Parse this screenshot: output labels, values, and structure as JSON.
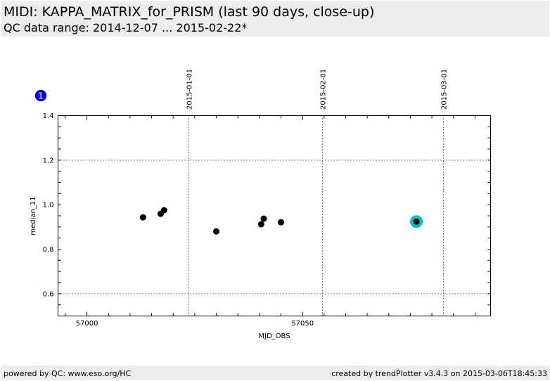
{
  "header": {
    "title": "MIDI: KAPPA_MATRIX_for_PRISM (last 90 days, close-up)",
    "subtitle": "QC data range: 2014-12-07 ... 2015-02-22*"
  },
  "footer": {
    "left": "powered by QC: www.eso.org/HC",
    "right": "created by trendPlotter v3.4.3 on 2015-03-06T18:45:33"
  },
  "badge": "1",
  "chart_data": {
    "type": "scatter",
    "xlabel": "MJD_OBS",
    "ylabel": "median_11",
    "xlim": [
      56993.3,
      57093.6
    ],
    "ylim": [
      0.5,
      1.4
    ],
    "xticks": [
      57000,
      57050
    ],
    "xtick_labels": [
      "57000",
      "57050"
    ],
    "yticks": [
      0.6,
      0.8,
      1.0,
      1.2,
      1.4
    ],
    "ytick_labels": [
      "0.6",
      "0.8",
      "1.0",
      "1.2",
      "1.4"
    ],
    "ygrid": [
      0.6,
      1.2
    ],
    "date_lines": [
      {
        "label": "2015-01-01",
        "mjd": 57023.6
      },
      {
        "label": "2015-02-01",
        "mjd": 57054.6
      },
      {
        "label": "2015-03-01",
        "mjd": 57082.6
      }
    ],
    "points": [
      {
        "x": 57013.0,
        "y": 0.943
      },
      {
        "x": 57017.1,
        "y": 0.959
      },
      {
        "x": 57017.9,
        "y": 0.975
      },
      {
        "x": 57030.0,
        "y": 0.88
      },
      {
        "x": 57040.4,
        "y": 0.912
      },
      {
        "x": 57041.0,
        "y": 0.937
      },
      {
        "x": 57045.0,
        "y": 0.921
      },
      {
        "x": 57076.4,
        "y": 0.924,
        "highlight": true
      }
    ],
    "colors": {
      "point": "#000000",
      "highlight": "#00c0c0",
      "badge": "#0000ff"
    }
  }
}
